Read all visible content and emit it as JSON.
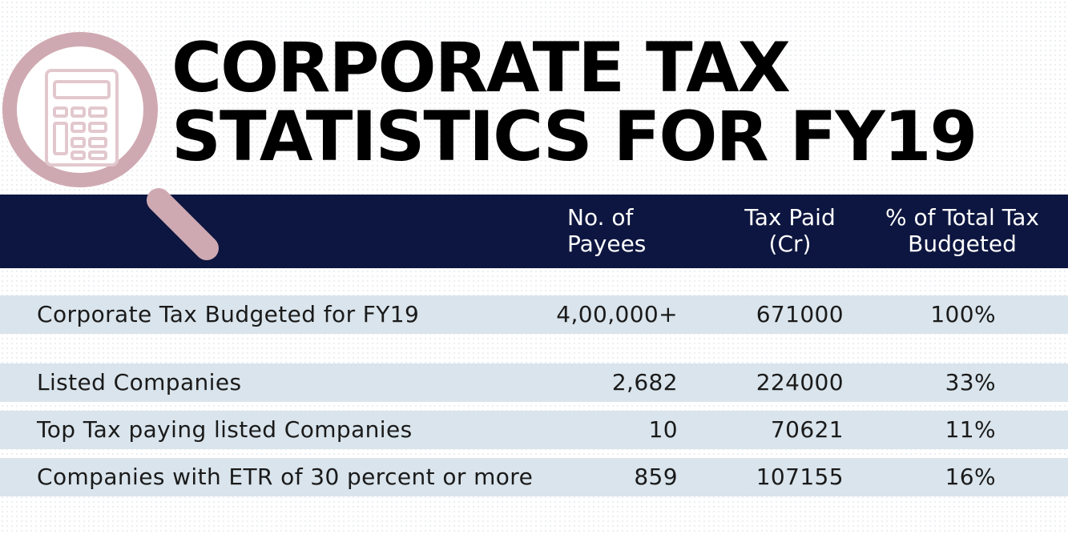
{
  "title": {
    "line1": "CORPORATE TAX",
    "line2": "STATISTICS FOR FY19"
  },
  "colors": {
    "header_band": "#0d1640",
    "row_band": "#d9e4ec",
    "magnifier": "#cfa9b1"
  },
  "icon": "magnifier-calculator-icon",
  "chart_data": {
    "type": "table",
    "title": "CORPORATE TAX STATISTICS FOR FY19",
    "columns": [
      {
        "line1": "No. of",
        "line2": "Payees"
      },
      {
        "line1": "Tax Paid",
        "line2": "(Cr)"
      },
      {
        "line1": "% of Total Tax",
        "line2": "Budgeted"
      }
    ],
    "rows": [
      {
        "label": "Corporate Tax Budgeted for FY19",
        "payees": "4,00,000+",
        "tax_paid": "671000",
        "pct": "100%"
      },
      {
        "label": "Listed Companies",
        "payees": "2,682",
        "tax_paid": "224000",
        "pct": "33%"
      },
      {
        "label": "Top Tax paying listed Companies",
        "payees": "10",
        "tax_paid": "70621",
        "pct": "11%"
      },
      {
        "label": "Companies with ETR of 30 percent or more",
        "payees": "859",
        "tax_paid": "107155",
        "pct": "16%"
      }
    ]
  }
}
